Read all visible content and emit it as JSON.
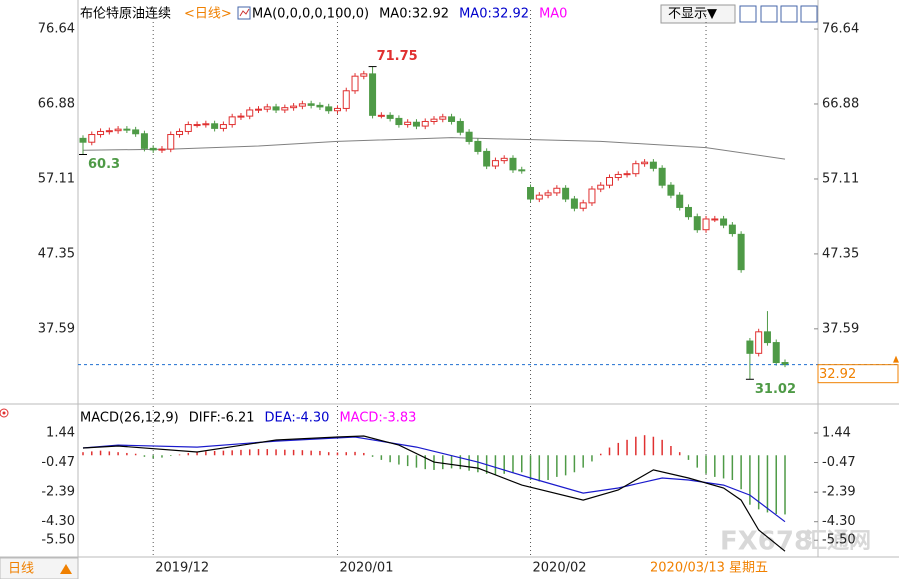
{
  "chart_data": [
    {
      "type": "candlestick",
      "title": "布伦特原油连续",
      "period": "<日线>",
      "legend": [
        {
          "text": "MA(0,0,0,0,100,0)",
          "color": "#000000"
        },
        {
          "text": "MA0:32.92",
          "color": "#000000"
        },
        {
          "text": "MA0:32.92",
          "color": "#0000cc"
        },
        {
          "text": "MA0",
          "color": "#ff00ff"
        }
      ],
      "up_color": "#e03030",
      "down_color": "#4e9a46",
      "open": [
        62.4,
        61.9,
        62.9,
        63.3,
        63.4,
        63.6,
        63.5,
        63.0,
        61.1,
        60.9,
        61.0,
        62.9,
        63.3,
        64.2,
        64.2,
        64.3,
        63.7,
        64.2,
        65.2,
        65.3,
        66.1,
        66.2,
        66.5,
        66.1,
        66.4,
        66.6,
        66.9,
        66.7,
        66.5,
        66.0,
        66.3,
        68.6,
        70.5,
        70.8,
        65.4,
        65.4,
        65.0,
        64.2,
        64.5,
        64.0,
        64.6,
        64.9,
        65.2,
        64.6,
        63.2,
        62.0,
        60.7,
        58.8,
        59.5,
        59.8,
        58.3,
        56.0,
        54.5,
        55.0,
        55.3,
        55.9,
        54.5,
        53.3,
        54.0,
        55.8,
        56.3,
        57.3,
        57.7,
        57.8,
        59.1,
        59.3,
        58.5,
        56.3,
        55.0,
        53.4,
        52.2,
        50.5,
        51.9,
        51.9,
        51.1,
        49.9,
        36.0,
        34.4,
        37.2,
        35.8,
        33.2
      ],
      "high": [
        62.8,
        63.3,
        63.7,
        63.8,
        64.0,
        64.0,
        63.9,
        63.4,
        61.5,
        61.4,
        63.3,
        63.7,
        64.6,
        64.6,
        64.7,
        64.7,
        64.6,
        65.6,
        65.7,
        66.5,
        66.6,
        66.9,
        66.9,
        66.8,
        67.0,
        67.3,
        67.3,
        67.1,
        66.9,
        66.7,
        69.0,
        70.9,
        71.2,
        71.75,
        65.8,
        65.8,
        65.4,
        64.9,
        64.9,
        65.0,
        65.3,
        65.6,
        65.6,
        65.0,
        63.6,
        62.4,
        61.1,
        59.9,
        60.2,
        60.2,
        58.7,
        56.4,
        55.4,
        55.7,
        56.3,
        56.3,
        54.9,
        54.4,
        56.2,
        56.7,
        57.7,
        58.1,
        58.2,
        59.5,
        59.7,
        59.7,
        58.9,
        56.7,
        55.4,
        53.8,
        52.6,
        52.3,
        52.3,
        52.3,
        51.5,
        50.3,
        36.4,
        37.6,
        39.9,
        36.2,
        33.6
      ],
      "low": [
        60.3,
        61.5,
        62.5,
        62.9,
        63.0,
        63.1,
        62.6,
        60.7,
        60.5,
        60.5,
        60.6,
        62.5,
        62.9,
        63.8,
        63.8,
        63.3,
        63.3,
        63.8,
        64.8,
        64.9,
        65.7,
        65.8,
        65.7,
        65.7,
        66.0,
        66.2,
        66.3,
        66.1,
        65.6,
        65.6,
        65.9,
        68.2,
        70.1,
        65.0,
        65.0,
        64.6,
        63.8,
        63.8,
        63.6,
        63.6,
        64.2,
        64.5,
        64.2,
        62.8,
        61.6,
        60.3,
        58.4,
        58.4,
        59.1,
        57.9,
        57.8,
        54.1,
        54.1,
        54.6,
        54.9,
        54.1,
        52.9,
        52.9,
        53.6,
        55.4,
        55.9,
        56.9,
        57.3,
        57.4,
        58.7,
        58.1,
        55.9,
        54.6,
        53.0,
        51.8,
        50.1,
        50.1,
        51.5,
        50.7,
        49.6,
        44.9,
        31.02,
        34.0,
        35.4,
        32.8,
        32.6
      ],
      "close": [
        61.9,
        62.9,
        63.3,
        63.4,
        63.6,
        63.5,
        63.0,
        61.1,
        60.9,
        61.0,
        62.9,
        63.3,
        64.2,
        64.2,
        64.3,
        63.7,
        64.2,
        65.2,
        65.3,
        66.1,
        66.2,
        66.5,
        66.1,
        66.4,
        66.6,
        66.9,
        66.7,
        66.5,
        66.0,
        66.3,
        68.6,
        70.5,
        70.8,
        65.4,
        65.4,
        65.0,
        64.2,
        64.5,
        64.0,
        64.6,
        64.9,
        65.2,
        64.6,
        63.2,
        62.0,
        60.7,
        58.8,
        59.5,
        59.8,
        58.3,
        58.2,
        54.5,
        55.0,
        55.3,
        55.9,
        54.5,
        53.3,
        54.0,
        55.8,
        56.3,
        57.3,
        57.7,
        57.8,
        59.1,
        59.3,
        58.5,
        56.3,
        55.0,
        53.4,
        52.2,
        50.5,
        51.9,
        51.9,
        51.1,
        50.0,
        45.3,
        34.4,
        37.2,
        35.8,
        33.2,
        32.92
      ],
      "ma": {
        "color": "#808080",
        "x": [
          0,
          10,
          20,
          29,
          42,
          59,
          71,
          80
        ],
        "values": [
          60.84,
          61.0,
          61.4,
          62.0,
          62.5,
          62.0,
          61.2,
          59.7
        ]
      },
      "last_price_color": "#1f6fd0",
      "last_label_color": "#f08000",
      "xlim": [
        -0.57,
        83.76
      ],
      "ylim": [
        28.32,
        78.6
      ],
      "yticks": [
        76.64,
        66.88,
        57.11,
        47.35,
        37.59
      ],
      "xticks": [
        8,
        29,
        51,
        71
      ],
      "xtick_labels": [
        "2019/12",
        "2020/01",
        "2020/02",
        null
      ],
      "cursor_date": "2020/03/13 星期五"
    },
    {
      "type": "macd",
      "legend": [
        {
          "text": "MACD(26,12,9)",
          "color": "#000000"
        },
        {
          "text": "DIFF:-6.21",
          "color": "#000000"
        },
        {
          "text": "DEA:-4.30",
          "color": "#0000cc"
        },
        {
          "text": "MACD:-3.83",
          "color": "#ff00ff"
        }
      ],
      "diff": {
        "color": "#000000",
        "x": [
          0,
          4,
          13,
          22,
          29,
          32,
          36,
          40,
          45,
          50,
          57,
          61,
          65,
          69,
          73,
          75,
          77,
          80
        ],
        "values": [
          0.47,
          0.6,
          0.21,
          0.99,
          1.18,
          1.25,
          0.66,
          -0.44,
          -0.83,
          -1.93,
          -2.9,
          -2.25,
          -0.95,
          -1.47,
          -2.12,
          -2.9,
          -4.84,
          -6.21
        ]
      },
      "dea": {
        "color": "#1a1acc",
        "x": [
          0,
          4,
          13,
          22,
          31,
          38,
          45,
          51,
          57,
          61,
          66,
          69,
          73,
          76,
          80
        ],
        "values": [
          0.47,
          0.66,
          0.53,
          0.92,
          1.18,
          0.53,
          -0.44,
          -1.47,
          -2.45,
          -2.12,
          -1.47,
          -1.6,
          -1.93,
          -2.58,
          -4.3
        ]
      },
      "histogram": [
        0.2,
        0.25,
        0.3,
        0.25,
        0.2,
        0.15,
        0.1,
        -0.1,
        -0.2,
        -0.15,
        -0.05,
        0.05,
        0.15,
        0.2,
        0.25,
        0.28,
        0.3,
        0.32,
        0.35,
        0.38,
        0.4,
        0.4,
        0.38,
        0.36,
        0.35,
        0.33,
        0.3,
        0.28,
        0.2,
        0.18,
        0.2,
        0.22,
        0.15,
        -0.1,
        -0.3,
        -0.45,
        -0.6,
        -0.7,
        -0.8,
        -0.9,
        -0.95,
        -0.9,
        -0.85,
        -0.9,
        -1.0,
        -1.1,
        -1.2,
        -1.25,
        -1.2,
        -1.15,
        -1.1,
        -1.6,
        -1.7,
        -1.6,
        -1.4,
        -1.3,
        -1.1,
        -0.8,
        -0.4,
        0.1,
        0.5,
        0.8,
        1.0,
        1.2,
        1.3,
        1.2,
        1.0,
        0.6,
        0.2,
        -0.3,
        -0.8,
        -1.2,
        -1.4,
        -1.5,
        -1.6,
        -2.2,
        -3.2,
        -3.5,
        -3.7,
        -3.8,
        -3.83
      ],
      "up_color": "#e03030",
      "down_color": "#4e9a46",
      "ylim": [
        -6.52,
        2.93
      ],
      "yticks": [
        1.44,
        -0.47,
        -2.39,
        {
          "value": -4.3,
          "label": "-4.30"
        },
        {
          "value": -5.5,
          "label": "-5.50"
        }
      ]
    }
  ],
  "controls": {
    "display_toggle": "不显示▼",
    "period_button": "日线"
  },
  "watermark": {
    "code": "FX678",
    "name": "汇通网"
  }
}
